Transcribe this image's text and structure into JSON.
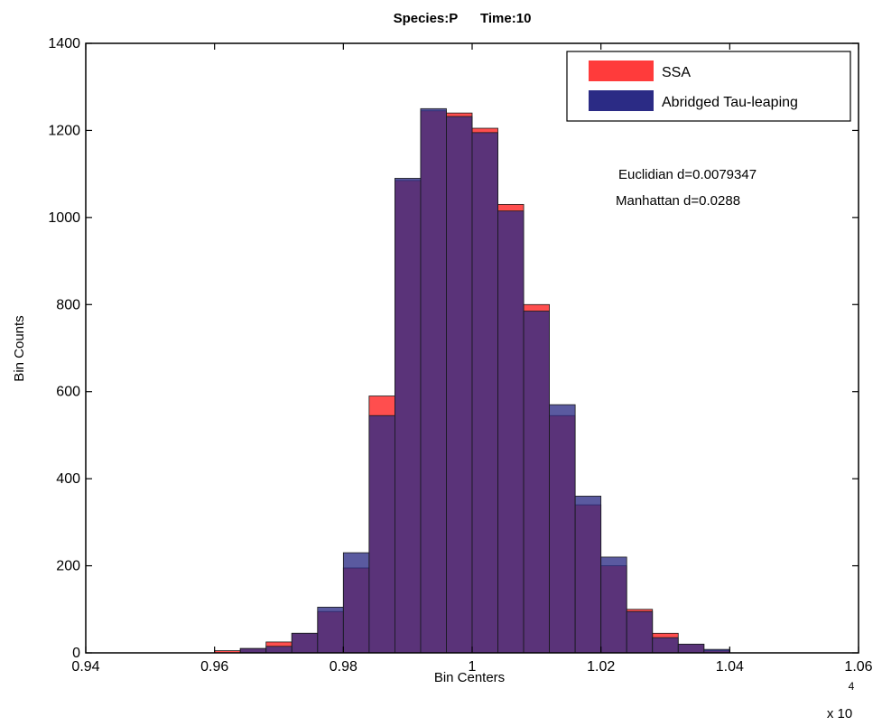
{
  "chart_data": {
    "type": "bar",
    "title": "Species:P      Time:10",
    "xlabel": "Bin Centers",
    "ylabel": "Bin Counts",
    "x_exponent": {
      "base": "x 10",
      "power": "4"
    },
    "xlim": [
      0.94,
      1.06
    ],
    "ylim": [
      0,
      1400
    ],
    "xticks": [
      0.94,
      0.96,
      0.98,
      1.0,
      1.02,
      1.04,
      1.06
    ],
    "xtick_labels": [
      "0.94",
      "0.96",
      "0.98",
      "1",
      "1.02",
      "1.04",
      "1.06"
    ],
    "yticks": [
      0,
      200,
      400,
      600,
      800,
      1000,
      1200,
      1400
    ],
    "ytick_labels": [
      "0",
      "200",
      "400",
      "600",
      "800",
      "1000",
      "1200",
      "1400"
    ],
    "grid": false,
    "legend_position": "top-right",
    "bin_width": 0.004,
    "bin_centers": [
      0.962,
      0.966,
      0.97,
      0.974,
      0.978,
      0.982,
      0.986,
      0.99,
      0.994,
      0.998,
      1.002,
      1.006,
      1.01,
      1.014,
      1.018,
      1.022,
      1.026,
      1.03,
      1.034,
      1.038
    ],
    "series": [
      {
        "name": "SSA",
        "color": "#ff3b3b",
        "values": [
          5,
          10,
          25,
          45,
          95,
          195,
          590,
          1085,
          1245,
          1240,
          1205,
          1030,
          800,
          545,
          340,
          200,
          100,
          45,
          20,
          5
        ]
      },
      {
        "name": "Abridged Tau-leaping",
        "color": "#2b2b85",
        "values": [
          0,
          10,
          15,
          45,
          105,
          230,
          545,
          1090,
          1250,
          1232,
          1195,
          1015,
          785,
          570,
          360,
          220,
          95,
          35,
          20,
          8
        ]
      }
    ],
    "annotations": [
      "Euclidian d=0.0079347",
      "Manhattan d=0.0288"
    ]
  }
}
